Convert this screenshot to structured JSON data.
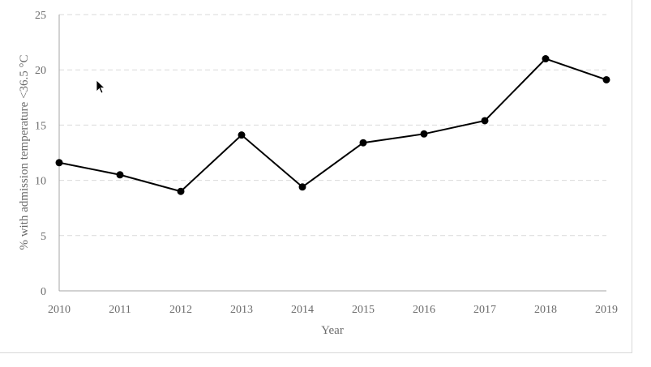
{
  "chart_data": {
    "type": "line",
    "x": [
      "2010",
      "2011",
      "2012",
      "2013",
      "2014",
      "2015",
      "2016",
      "2017",
      "2018",
      "2019"
    ],
    "series": [
      {
        "values": [
          11.6,
          10.5,
          9.0,
          14.1,
          9.4,
          13.4,
          14.2,
          15.4,
          21.0,
          19.1
        ]
      }
    ],
    "xlabel": "Year",
    "ylabel": "% with admission temperature <36.5 °C",
    "ylim": [
      0,
      25
    ],
    "yticks": [
      0,
      5,
      10,
      15,
      20,
      25
    ],
    "grid": true,
    "legend": "none",
    "colors": {
      "line": "#000000",
      "grid": "#d9d9d9",
      "text": "#6b6b6b"
    }
  },
  "icons": {
    "cursor": "mouse-pointer-icon"
  }
}
